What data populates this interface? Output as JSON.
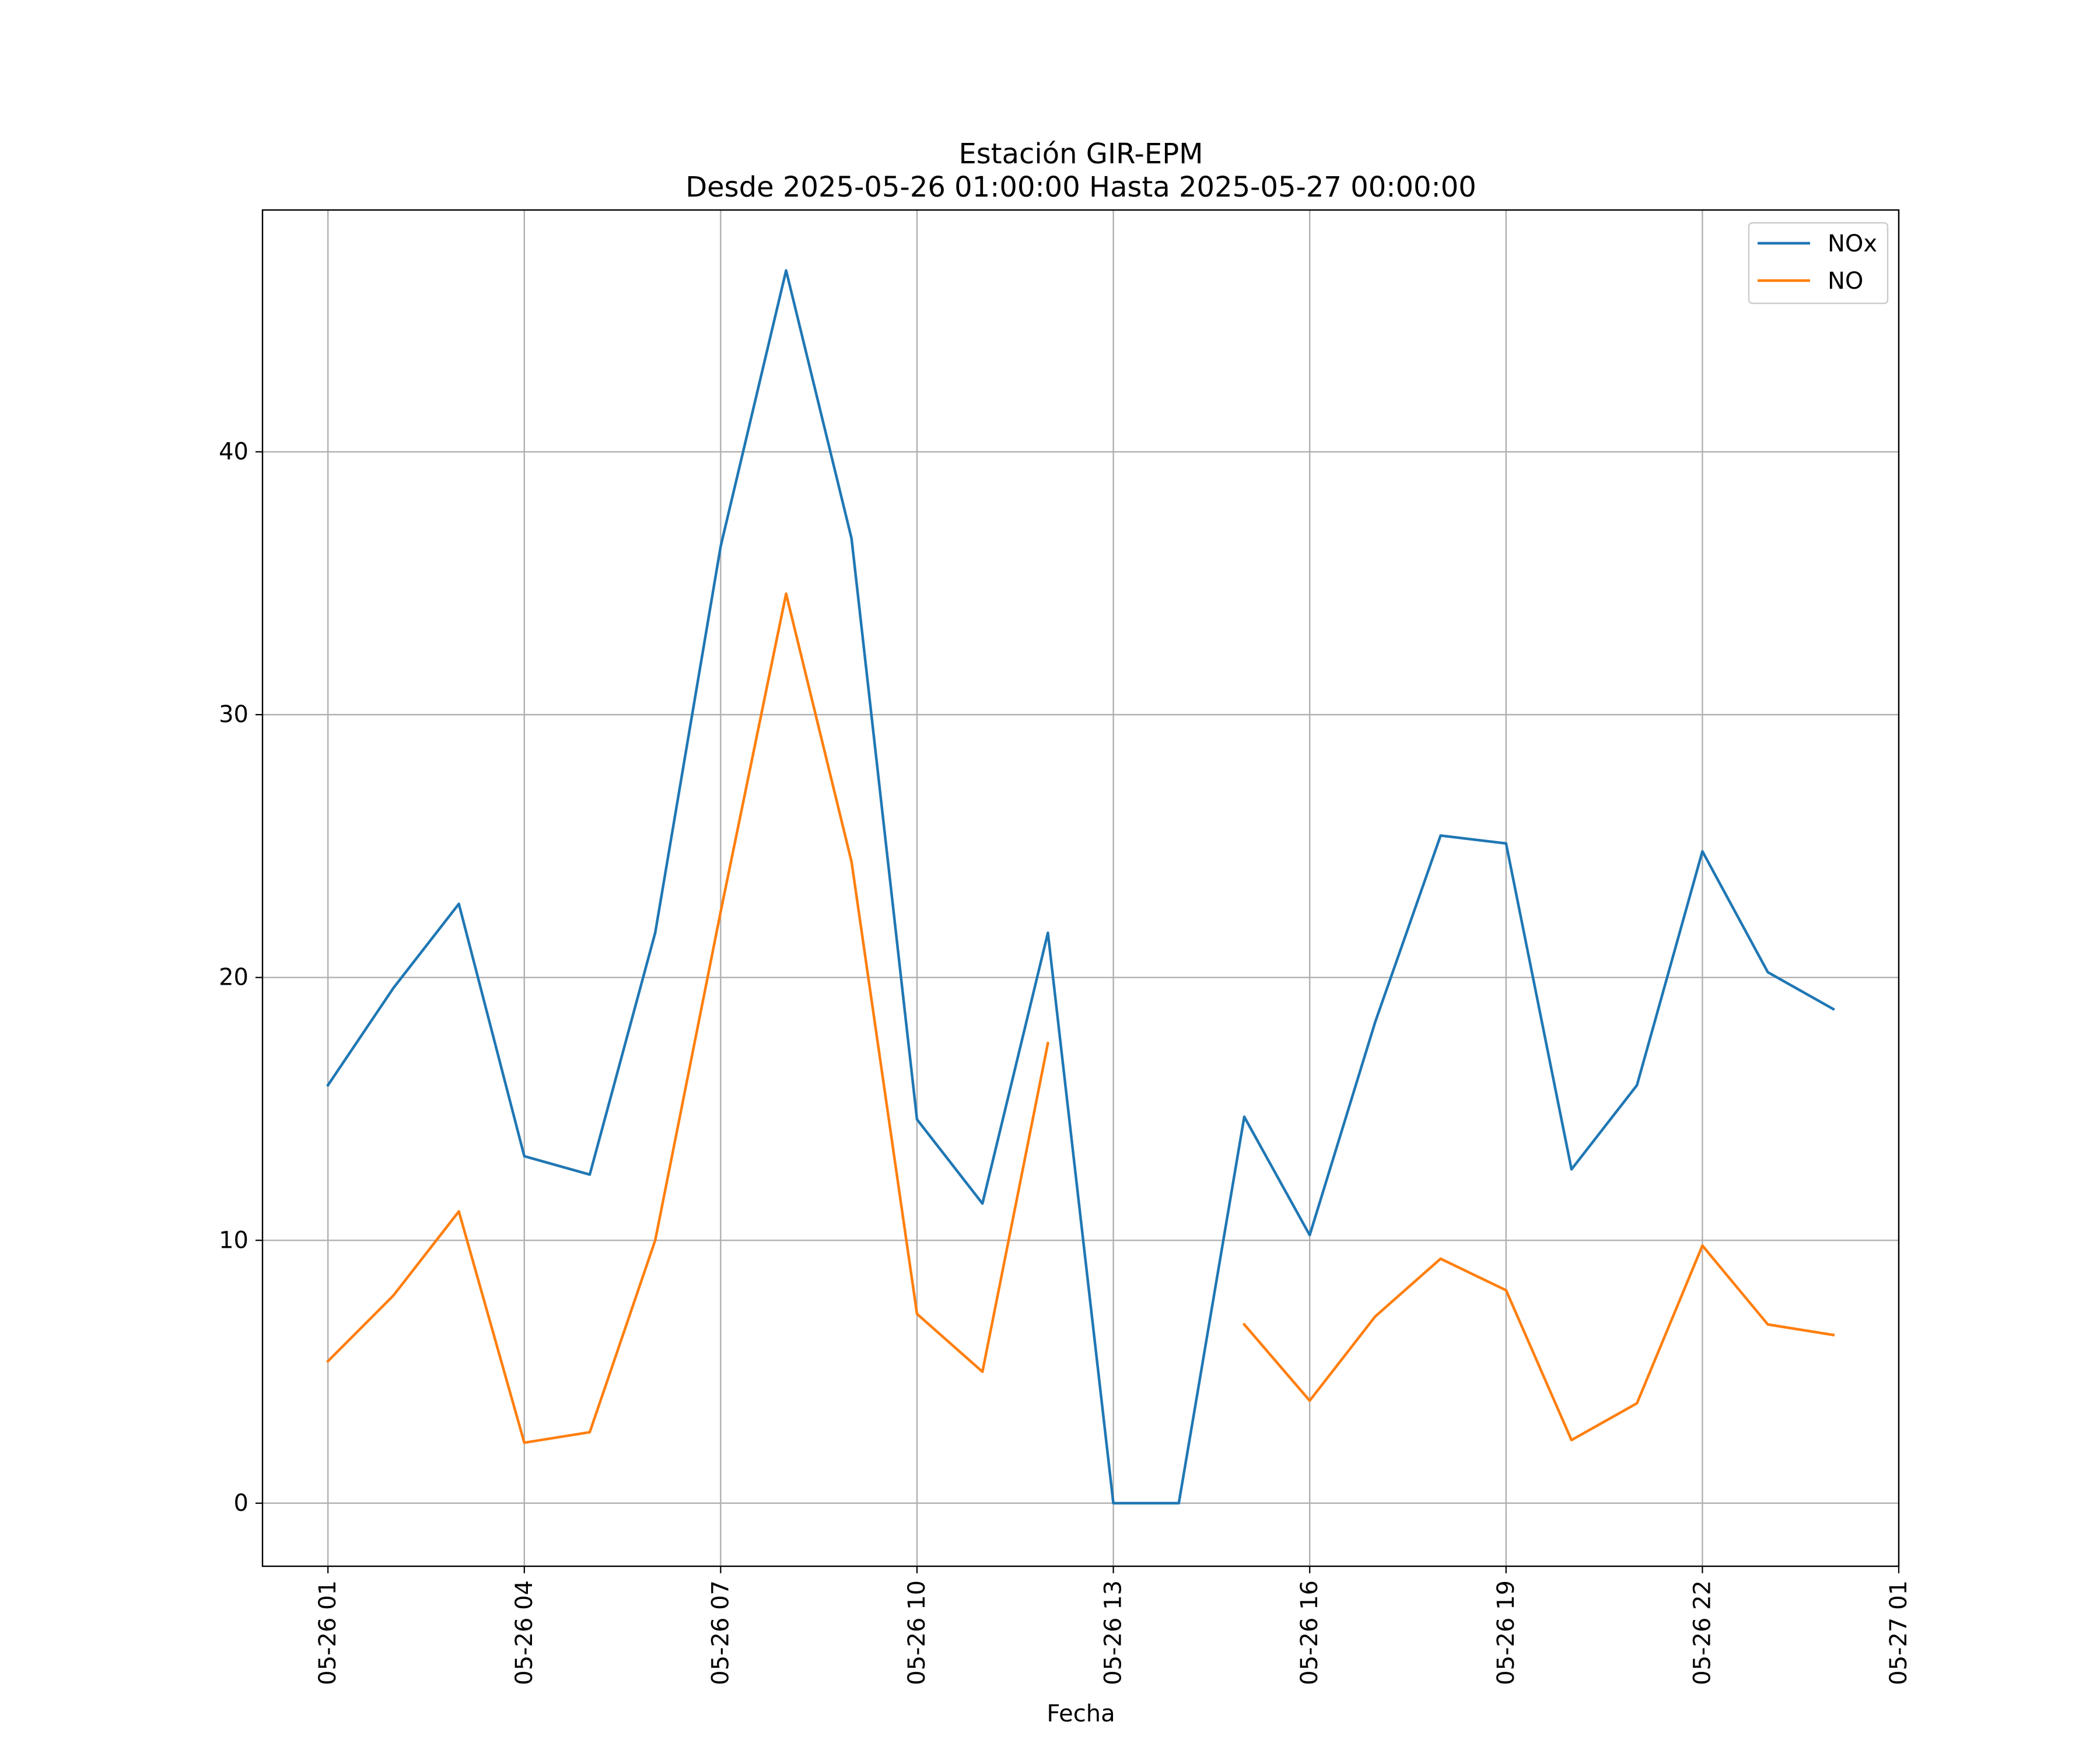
{
  "chart_data": {
    "type": "line",
    "title": "Estación GIR-EPM",
    "subtitle": "Desde 2025-05-26 01:00:00 Hasta 2025-05-27 00:00:00",
    "xlabel": "Fecha",
    "ylabel": "",
    "x_tick_labels": [
      "05-26 01",
      "05-26 04",
      "05-26 07",
      "05-26 10",
      "05-26 13",
      "05-26 16",
      "05-26 19",
      "05-26 22",
      "05-27 01"
    ],
    "y_ticks": [
      0,
      10,
      20,
      30,
      40
    ],
    "xlim": [
      "2025-05-26 00:00",
      "2025-05-27 01:00"
    ],
    "ylim": [
      -2.4,
      49.2
    ],
    "grid": true,
    "legend_position": "top-right",
    "x": [
      "2025-05-26 01:00",
      "2025-05-26 02:00",
      "2025-05-26 03:00",
      "2025-05-26 04:00",
      "2025-05-26 05:00",
      "2025-05-26 06:00",
      "2025-05-26 07:00",
      "2025-05-26 08:00",
      "2025-05-26 09:00",
      "2025-05-26 10:00",
      "2025-05-26 11:00",
      "2025-05-26 12:00",
      "2025-05-26 13:00",
      "2025-05-26 14:00",
      "2025-05-26 15:00",
      "2025-05-26 16:00",
      "2025-05-26 17:00",
      "2025-05-26 18:00",
      "2025-05-26 19:00",
      "2025-05-26 20:00",
      "2025-05-26 21:00",
      "2025-05-26 22:00",
      "2025-05-26 23:00",
      "2025-05-27 00:00"
    ],
    "series": [
      {
        "name": "NOx",
        "color": "#1f77b4",
        "values": [
          15.9,
          19.6,
          22.8,
          13.2,
          12.5,
          21.7,
          36.4,
          46.9,
          36.7,
          14.6,
          11.4,
          21.7,
          0.0,
          0.0,
          14.7,
          10.2,
          18.3,
          25.4,
          25.1,
          12.7,
          15.9,
          24.8,
          20.2,
          18.8
        ]
      },
      {
        "name": "NO",
        "color": "#ff7f0e",
        "values": [
          5.4,
          7.9,
          11.1,
          2.3,
          2.7,
          10.0,
          22.5,
          34.6,
          24.4,
          7.2,
          5.0,
          17.5,
          null,
          null,
          6.8,
          3.9,
          7.1,
          9.3,
          8.1,
          2.4,
          3.8,
          9.8,
          6.8,
          6.4
        ]
      }
    ]
  }
}
